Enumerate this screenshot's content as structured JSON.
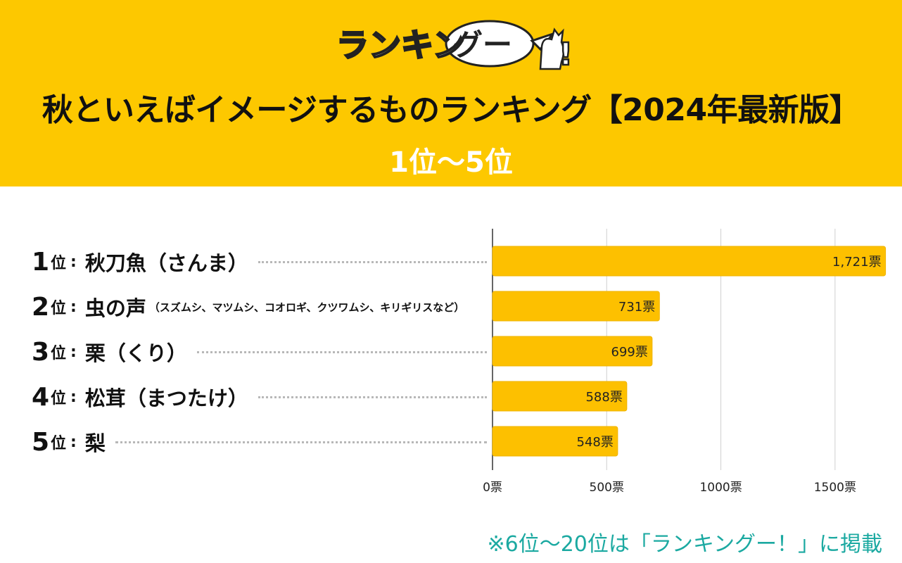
{
  "header": {
    "logo_text": "ランキングー!",
    "title": "秋といえばイメージするものランキング【2024年最新版】",
    "subtitle": "1位〜5位"
  },
  "colors": {
    "header_bg": "#FDC800",
    "bar_fill": "#FDC000",
    "bar_stroke": "#F0B400",
    "footnote": "#1BA9A1"
  },
  "ranks": [
    {
      "num": "1",
      "suffix": "位",
      "colon": ":",
      "name": "秋刀魚（さんま）",
      "note": ""
    },
    {
      "num": "2",
      "suffix": "位",
      "colon": ":",
      "name": "虫の声",
      "note": "（スズムシ、マツムシ、コオロギ、クツワムシ、キリギリスなど）"
    },
    {
      "num": "3",
      "suffix": "位",
      "colon": ":",
      "name": "栗（くり）",
      "note": ""
    },
    {
      "num": "4",
      "suffix": "位",
      "colon": ":",
      "name": "松茸（まつたけ）",
      "note": ""
    },
    {
      "num": "5",
      "suffix": "位",
      "colon": ":",
      "name": "梨",
      "note": ""
    }
  ],
  "chart_data": {
    "type": "bar",
    "orientation": "horizontal",
    "categories": [
      "秋刀魚（さんま）",
      "虫の声",
      "栗（くり）",
      "松茸（まつたけ）",
      "梨"
    ],
    "values": [
      1721,
      731,
      699,
      588,
      548
    ],
    "value_labels": [
      "1,721票",
      "731票",
      "699票",
      "588票",
      "548票"
    ],
    "xlim": [
      0,
      1750
    ],
    "x_ticks": [
      0,
      500,
      1000,
      1500
    ],
    "x_tick_labels": [
      "0票",
      "500票",
      "1000票",
      "1500票"
    ],
    "grid": true
  },
  "footnote": "※6位〜20位は「ランキングー！」に掲載"
}
